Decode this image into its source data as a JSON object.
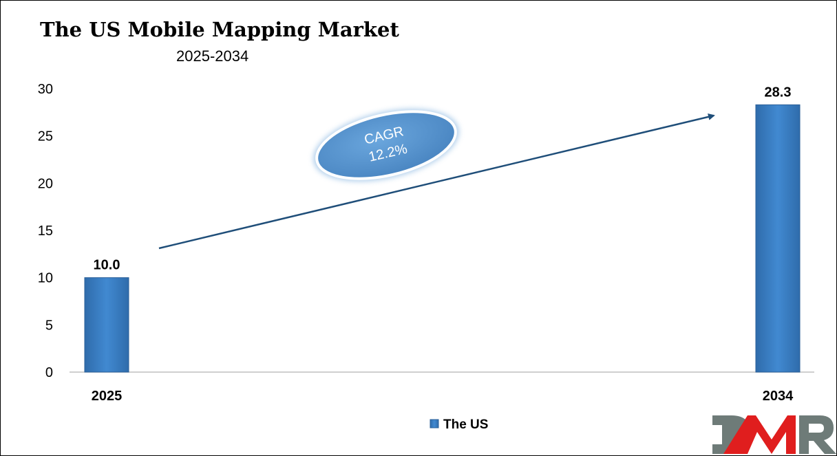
{
  "chart_data": {
    "type": "bar",
    "title": "The US Mobile Mapping Market",
    "subtitle": "2025-2034",
    "categories": [
      "2025",
      "2034"
    ],
    "series": [
      {
        "name": "The US",
        "values": [
          10.0,
          28.3
        ],
        "data_labels": [
          "10.0",
          "28.3"
        ]
      }
    ],
    "ylim": [
      0,
      30
    ],
    "yticks": [
      "0",
      "5",
      "10",
      "15",
      "20",
      "25",
      "30"
    ],
    "grid": false,
    "legend": "bottom",
    "annotation": {
      "line1": "CAGR",
      "line2": "12.2%"
    },
    "colors": {
      "bar": "#3a7fc4",
      "bar_edge": "#2a5f98",
      "arrow": "#1f4e79",
      "ellipse": "#5b9bd5"
    }
  },
  "logo": {
    "text": "DMR",
    "colors": {
      "gray": "#6e7b78",
      "red": "#e01e1e"
    }
  }
}
